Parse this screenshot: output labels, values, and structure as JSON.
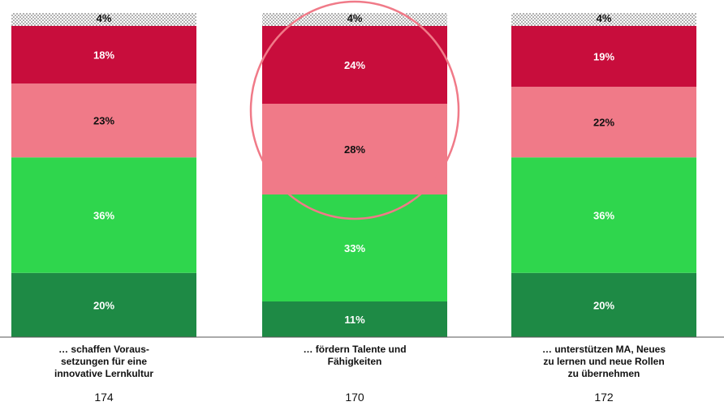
{
  "chart_data": {
    "type": "bar",
    "stacked": true,
    "categories": [
      "… schaffen Voraus-\nsetzungen für eine\ninnovative Lernkultur",
      "… fördern Talente und\nFähigkeiten",
      "… unterstützen MA, Neues\nzu lernen und neue Rollen\nzu übernehmen"
    ],
    "sample_sizes": [
      "174",
      "170",
      "172"
    ],
    "series": [
      {
        "values": [
          20,
          11,
          20
        ],
        "labels": [
          "20%",
          "11%",
          "20%"
        ],
        "color": "#1e8a45",
        "label_color": "#ffffff"
      },
      {
        "values": [
          36,
          33,
          36
        ],
        "labels": [
          "36%",
          "33%",
          "36%"
        ],
        "color": "#2fd64d",
        "label_color": "#ffffff"
      },
      {
        "values": [
          23,
          28,
          22
        ],
        "labels": [
          "23%",
          "28%",
          "22%"
        ],
        "color": "#f07a88",
        "label_color": "#111111"
      },
      {
        "values": [
          18,
          24,
          19
        ],
        "labels": [
          "18%",
          "24%",
          "19%"
        ],
        "color": "#c80d3c",
        "label_color": "#ffffff"
      },
      {
        "values": [
          4,
          4,
          4
        ],
        "labels": [
          "4%",
          "4%",
          "4%"
        ],
        "color": "dotted",
        "label_color": "#111111"
      }
    ],
    "highlight": {
      "category_index": 1,
      "segments": [
        2,
        3
      ],
      "color": "#f07a88"
    },
    "ylim": [
      0,
      100
    ],
    "grid": false,
    "legend": "none"
  }
}
